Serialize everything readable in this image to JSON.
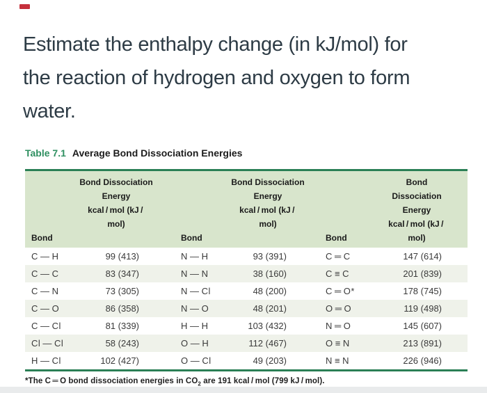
{
  "question": {
    "lines": [
      "Estimate the enthalpy change (in kJ/mol) for",
      "the reaction of hydrogen and oxygen to form",
      "water."
    ]
  },
  "table": {
    "label": "Table 7.1",
    "title": "Average Bond Dissociation Energies",
    "column_headers": {
      "bond": "Bond",
      "energy_line1": "Bond Dissociation",
      "energy_line2": "Energy",
      "energy_line3": "kcal / mol (kJ / mol)"
    },
    "rows": [
      {
        "c0": "C — H",
        "c1": "99 (413)",
        "c2": "N — H",
        "c3": "93 (391)",
        "c4": "C ═ C",
        "c5": "147 (614)"
      },
      {
        "c0": "C — C",
        "c1": "83 (347)",
        "c2": "N — N",
        "c3": "38 (160)",
        "c4": "C ≡ C",
        "c5": "201 (839)"
      },
      {
        "c0": "C — N",
        "c1": "73 (305)",
        "c2": "N — Cl",
        "c3": "48 (200)",
        "c4": "C ═ O*",
        "c5": "178 (745)"
      },
      {
        "c0": "C — O",
        "c1": "86 (358)",
        "c2": "N — O",
        "c3": "48 (201)",
        "c4": "O ═ O",
        "c5": "119 (498)"
      },
      {
        "c0": "C — Cl",
        "c1": "81 (339)",
        "c2": "H — H",
        "c3": "103 (432)",
        "c4": "N ═ O",
        "c5": "145 (607)"
      },
      {
        "c0": "Cl — Cl",
        "c1": "58 (243)",
        "c2": "O — H",
        "c3": "112 (467)",
        "c4": "O ≡ N",
        "c5": "213 (891)"
      },
      {
        "c0": "H — Cl",
        "c1": "102 (427)",
        "c2": "O — Cl",
        "c3": "49 (203)",
        "c4": "N ≡ N",
        "c5": "226 (946)"
      }
    ],
    "footnote": {
      "pre": "*The C ═ O bond dissociation energies in CO",
      "sub": "2",
      "post": " are 191 kcal / mol (799 kJ / mol)."
    }
  },
  "colors": {
    "heading_text": "#2d3b45",
    "accent_green": "#2e8f60",
    "border_green": "#2a7f55",
    "header_bg": "#d8e5cc",
    "stripe_bg": "#eff2ea",
    "marker_red": "#c5303c"
  }
}
